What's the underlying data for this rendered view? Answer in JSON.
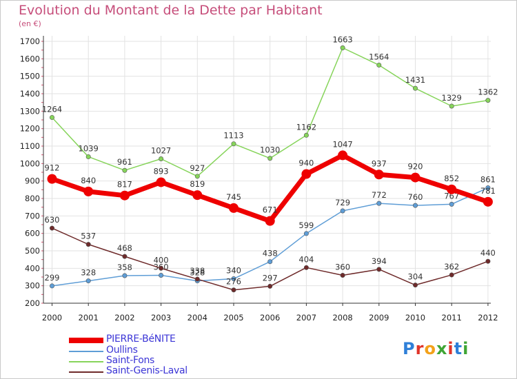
{
  "header": {
    "title": "Evolution du Montant de la Dette par Habitant",
    "subtitle": "(en €)"
  },
  "logo": {
    "letters": [
      "P",
      "r",
      "o",
      "x",
      "i",
      "t",
      "i"
    ],
    "colors": [
      "#2f7fd8",
      "#e0342a",
      "#f3a11a",
      "#3fa535",
      "#e0342a",
      "#2f7fd8",
      "#3fa535"
    ]
  },
  "chart_data": {
    "type": "line",
    "x": [
      "2000",
      "2001",
      "2002",
      "2003",
      "2004",
      "2005",
      "2006",
      "2007",
      "2008",
      "2009",
      "2010",
      "2011",
      "2012"
    ],
    "ylim": [
      200,
      1700
    ],
    "yticks": [
      200,
      300,
      400,
      500,
      600,
      700,
      800,
      900,
      1000,
      1100,
      1200,
      1300,
      1400,
      1500,
      1600,
      1700
    ],
    "title": "Evolution du Montant de la Dette par Habitant",
    "subtitle": "(en €)",
    "grid": true,
    "legend": "bottom-left",
    "series": [
      {
        "name": "PIERRE-BéNITE",
        "color": "#ee0000",
        "emphasis": true,
        "values": [
          912,
          840,
          817,
          893,
          819,
          745,
          671,
          940,
          1047,
          937,
          920,
          852,
          781
        ]
      },
      {
        "name": "Oullins",
        "color": "#5e9dd6",
        "values": [
          299,
          328,
          358,
          360,
          328,
          340,
          438,
          599,
          729,
          772,
          760,
          767,
          861
        ]
      },
      {
        "name": "Saint-Fons",
        "color": "#86d45a",
        "values": [
          1264,
          1039,
          961,
          1027,
          927,
          1113,
          1030,
          1162,
          1663,
          1564,
          1431,
          1329,
          1362
        ]
      },
      {
        "name": "Saint-Genis-Laval",
        "color": "#6e2a2a",
        "values": [
          630,
          537,
          468,
          400,
          338,
          276,
          297,
          404,
          360,
          394,
          304,
          362,
          440
        ]
      }
    ]
  }
}
